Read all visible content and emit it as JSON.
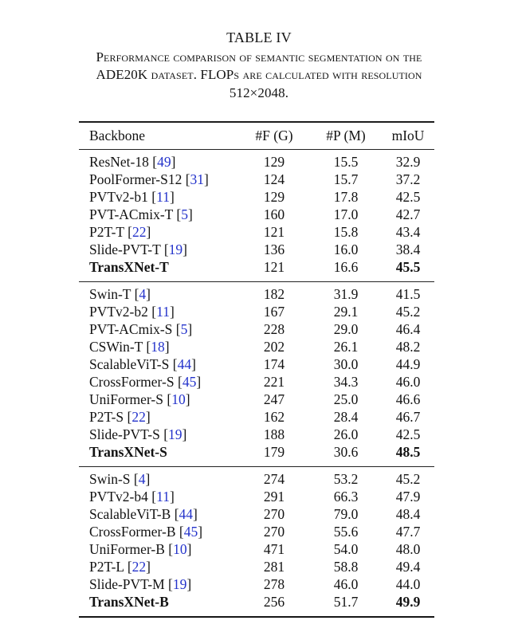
{
  "title": "TABLE IV",
  "caption_lines": [
    "Performance comparison of semantic segmentation on the",
    "ADE20K dataset. FLOPs are calculated with resolution",
    "512×2048."
  ],
  "colors": {
    "citation_blue": "#2433cb",
    "text": "#131313",
    "rule": "#1c1c1c"
  },
  "table": {
    "columns": [
      "Backbone",
      "#F (G)",
      "#P (M)",
      "mIoU"
    ],
    "sections": [
      {
        "rows": [
          {
            "name": "ResNet-18",
            "cite": "49",
            "f": "129",
            "p": "15.5",
            "miou": "32.9",
            "bold": false
          },
          {
            "name": "PoolFormer-S12",
            "cite": "31",
            "f": "124",
            "p": "15.7",
            "miou": "37.2",
            "bold": false
          },
          {
            "name": "PVTv2-b1",
            "cite": "11",
            "f": "129",
            "p": "17.8",
            "miou": "42.5",
            "bold": false
          },
          {
            "name": "PVT-ACmix-T",
            "cite": "5",
            "f": "160",
            "p": "17.0",
            "miou": "42.7",
            "bold": false
          },
          {
            "name": "P2T-T",
            "cite": "22",
            "f": "121",
            "p": "15.8",
            "miou": "43.4",
            "bold": false
          },
          {
            "name": "Slide-PVT-T",
            "cite": "19",
            "f": "136",
            "p": "16.0",
            "miou": "38.4",
            "bold": false
          },
          {
            "name": "TransXNet-T",
            "cite": null,
            "f": "121",
            "p": "16.6",
            "miou": "45.5",
            "bold": true
          }
        ]
      },
      {
        "rows": [
          {
            "name": "Swin-T",
            "cite": "4",
            "f": "182",
            "p": "31.9",
            "miou": "41.5",
            "bold": false
          },
          {
            "name": "PVTv2-b2",
            "cite": "11",
            "f": "167",
            "p": "29.1",
            "miou": "45.2",
            "bold": false
          },
          {
            "name": "PVT-ACmix-S",
            "cite": "5",
            "f": "228",
            "p": "29.0",
            "miou": "46.4",
            "bold": false
          },
          {
            "name": "CSWin-T",
            "cite": "18",
            "f": "202",
            "p": "26.1",
            "miou": "48.2",
            "bold": false
          },
          {
            "name": "ScalableViT-S",
            "cite": "44",
            "f": "174",
            "p": "30.0",
            "miou": "44.9",
            "bold": false
          },
          {
            "name": "CrossFormer-S",
            "cite": "45",
            "f": "221",
            "p": "34.3",
            "miou": "46.0",
            "bold": false
          },
          {
            "name": "UniFormer-S",
            "cite": "10",
            "f": "247",
            "p": "25.0",
            "miou": "46.6",
            "bold": false
          },
          {
            "name": "P2T-S",
            "cite": "22",
            "f": "162",
            "p": "28.4",
            "miou": "46.7",
            "bold": false
          },
          {
            "name": "Slide-PVT-S",
            "cite": "19",
            "f": "188",
            "p": "26.0",
            "miou": "42.5",
            "bold": false
          },
          {
            "name": "TransXNet-S",
            "cite": null,
            "f": "179",
            "p": "30.6",
            "miou": "48.5",
            "bold": true
          }
        ]
      },
      {
        "rows": [
          {
            "name": "Swin-S",
            "cite": "4",
            "f": "274",
            "p": "53.2",
            "miou": "45.2",
            "bold": false
          },
          {
            "name": "PVTv2-b4",
            "cite": "11",
            "f": "291",
            "p": "66.3",
            "miou": "47.9",
            "bold": false
          },
          {
            "name": "ScalableViT-B",
            "cite": "44",
            "f": "270",
            "p": "79.0",
            "miou": "48.4",
            "bold": false
          },
          {
            "name": "CrossFormer-B",
            "cite": "45",
            "f": "270",
            "p": "55.6",
            "miou": "47.7",
            "bold": false
          },
          {
            "name": "UniFormer-B",
            "cite": "10",
            "f": "471",
            "p": "54.0",
            "miou": "48.0",
            "bold": false
          },
          {
            "name": "P2T-L",
            "cite": "22",
            "f": "281",
            "p": "58.8",
            "miou": "49.4",
            "bold": false
          },
          {
            "name": "Slide-PVT-M",
            "cite": "19",
            "f": "278",
            "p": "46.0",
            "miou": "44.0",
            "bold": false
          },
          {
            "name": "TransXNet-B",
            "cite": null,
            "f": "256",
            "p": "51.7",
            "miou": "49.9",
            "bold": true
          }
        ]
      }
    ]
  }
}
